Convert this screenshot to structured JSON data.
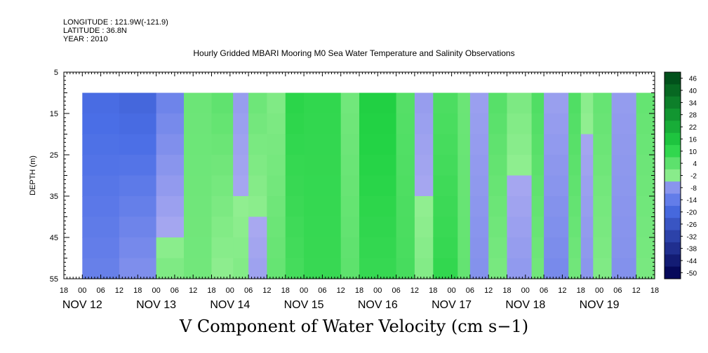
{
  "header": {
    "longitude": "LONGITUDE : 121.9W(-121.9)",
    "latitude": "LATITUDE : 36.8N",
    "year": "YEAR : 2010"
  },
  "title": "Hourly Gridded MBARI Mooring M0 Sea Water Temperature and Salinity Observations",
  "caption": "V Component of Water Velocity (cm s−1)",
  "chart_data": {
    "type": "heatmap",
    "title": "Hourly Gridded MBARI Mooring M0 Sea Water Temperature and Salinity Observations",
    "xlabel": "",
    "ylabel": "DEPTH (m)",
    "colorbar_label": "V Component of Water Velocity (cm s−1)",
    "ylim": [
      55,
      5
    ],
    "y_inverted": true,
    "y_ticks": [
      5,
      15,
      25,
      35,
      45,
      55
    ],
    "data_depth_range": [
      10,
      55
    ],
    "x_range_hours": [
      -6,
      186
    ],
    "x_hour_ticks": [
      "18",
      "00",
      "06",
      "12",
      "18",
      "00",
      "06",
      "12",
      "18",
      "00",
      "06",
      "12",
      "18",
      "00",
      "06",
      "12",
      "18",
      "00",
      "06",
      "12",
      "18",
      "00",
      "06",
      "12",
      "18",
      "00",
      "06",
      "12",
      "18",
      "00",
      "06",
      "12",
      "18"
    ],
    "x_day_labels": [
      {
        "label": "NOV 12",
        "hour": 0
      },
      {
        "label": "NOV 13",
        "hour": 24
      },
      {
        "label": "NOV 14",
        "hour": 48
      },
      {
        "label": "NOV 15",
        "hour": 72
      },
      {
        "label": "NOV 16",
        "hour": 96
      },
      {
        "label": "NOV 17",
        "hour": 120
      },
      {
        "label": "NOV 18",
        "hour": 144
      },
      {
        "label": "NOV 19",
        "hour": 168
      }
    ],
    "colorbar_levels": [
      46,
      40,
      34,
      28,
      22,
      16,
      10,
      4,
      -2,
      -8,
      -14,
      -20,
      -26,
      -32,
      -38,
      -44,
      -50
    ],
    "colorbar_range": [
      -50,
      50
    ],
    "colors": {
      "positive_light": "#90ee90",
      "positive_mid": "#22d344",
      "positive_dark": "#004d1a",
      "negative_light": "#a8a8f0",
      "negative_mid": "#4a6ee6",
      "negative_dark": "#00004d"
    },
    "field_segments": [
      {
        "t0": 0,
        "t1": 12,
        "v_top": -16,
        "v_bottom": -10
      },
      {
        "t0": 12,
        "t1": 24,
        "v_top": -18,
        "v_bottom": -6
      },
      {
        "t0": 24,
        "t1": 33,
        "v_top": -10,
        "v_bottom": 3
      },
      {
        "t0": 33,
        "t1": 42,
        "v_top": 5,
        "v_bottom": 4
      },
      {
        "t0": 42,
        "t1": 49,
        "v_top": 7,
        "v_bottom": 0
      },
      {
        "t0": 49,
        "t1": 54,
        "v_top": -3,
        "v_bottom": 2
      },
      {
        "t0": 54,
        "t1": 60,
        "v_top": 5,
        "v_bottom": -2
      },
      {
        "t0": 60,
        "t1": 66,
        "v_top": 2,
        "v_bottom": 6
      },
      {
        "t0": 66,
        "t1": 72,
        "v_top": 14,
        "v_bottom": 10
      },
      {
        "t0": 72,
        "t1": 84,
        "v_top": 13,
        "v_bottom": 12
      },
      {
        "t0": 84,
        "t1": 90,
        "v_top": 4,
        "v_bottom": 7
      },
      {
        "t0": 90,
        "t1": 102,
        "v_top": 16,
        "v_bottom": 12
      },
      {
        "t0": 102,
        "t1": 108,
        "v_top": 8,
        "v_bottom": 10
      },
      {
        "t0": 108,
        "t1": 114,
        "v_top": -3,
        "v_bottom": 2
      },
      {
        "t0": 114,
        "t1": 122,
        "v_top": 9,
        "v_bottom": 13
      },
      {
        "t0": 122,
        "t1": 126,
        "v_top": 5,
        "v_bottom": 6
      },
      {
        "t0": 126,
        "t1": 132,
        "v_top": -2,
        "v_bottom": -6
      },
      {
        "t0": 132,
        "t1": 138,
        "v_top": 8,
        "v_bottom": 3
      },
      {
        "t0": 138,
        "t1": 146,
        "v_top": 3,
        "v_bottom": -4
      },
      {
        "t0": 146,
        "t1": 150,
        "v_top": 9,
        "v_bottom": 4
      },
      {
        "t0": 150,
        "t1": 158,
        "v_top": -2,
        "v_bottom": -8
      },
      {
        "t0": 158,
        "t1": 162,
        "v_top": 9,
        "v_bottom": 4
      },
      {
        "t0": 162,
        "t1": 166,
        "v_top": 1,
        "v_bottom": -5
      },
      {
        "t0": 166,
        "t1": 172,
        "v_top": 6,
        "v_bottom": 2
      },
      {
        "t0": 172,
        "t1": 180,
        "v_top": -3,
        "v_bottom": -6
      },
      {
        "t0": 180,
        "t1": 186,
        "v_top": 6,
        "v_bottom": 3
      }
    ]
  }
}
